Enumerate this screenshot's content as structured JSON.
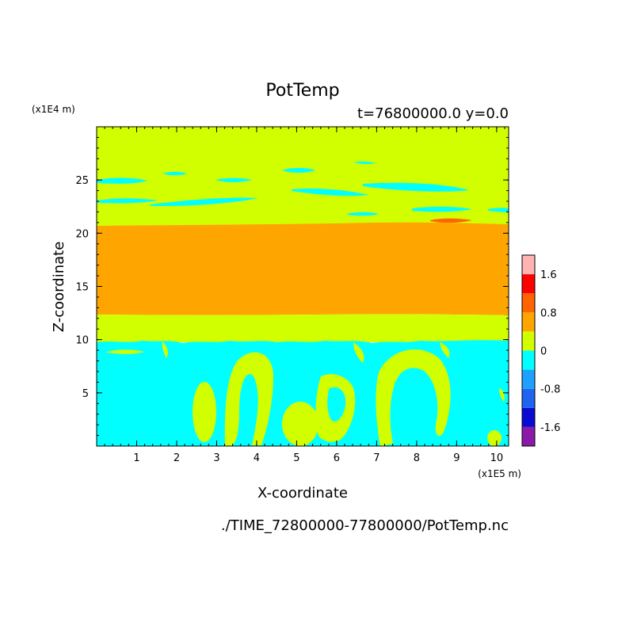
{
  "chart_data": {
    "type": "heatmap",
    "title": "PotTemp",
    "subtitle": "t=76800000.0 y=0.0",
    "xlabel": "X-coordinate",
    "ylabel": "Z-coordinate",
    "x_unit": "(x1E5 m)",
    "y_unit": "(x1E4 m)",
    "footer": "./TIME_72800000-77800000/PotTemp.nc",
    "xlim": [
      0,
      10.3
    ],
    "ylim": [
      0,
      30
    ],
    "x_ticks": [
      "1",
      "2",
      "3",
      "4",
      "5",
      "6",
      "7",
      "8",
      "9",
      "10"
    ],
    "y_ticks": [
      "5",
      "10",
      "15",
      "20",
      "25"
    ],
    "x_tick_values": [
      1,
      2,
      3,
      4,
      5,
      6,
      7,
      8,
      9,
      10
    ],
    "y_tick_values": [
      5,
      10,
      15,
      20,
      25
    ],
    "colorbar": {
      "levels": [
        -2.0,
        -1.6,
        -1.2,
        -0.8,
        -0.4,
        0,
        0.4,
        0.8,
        1.2,
        1.6,
        2.0
      ],
      "colors": [
        "#8c1aa8",
        "#0a0ad2",
        "#1e64f0",
        "#1ea0ff",
        "#00ffff",
        "#d2ff00",
        "#ffa500",
        "#ff6400",
        "#ff0000",
        "#ffb4b4"
      ],
      "labels": [
        "1.6",
        "0.8",
        "0",
        "-0.8",
        "-1.6"
      ],
      "label_values": [
        1.6,
        0.8,
        0,
        -0.8,
        -1.6
      ]
    },
    "bands": [
      {
        "z_min": 0,
        "z_max": 9.8,
        "value": -0.2
      },
      {
        "z_min": 9.8,
        "z_max": 12.3,
        "value": 0.2
      },
      {
        "z_min": 12.3,
        "z_max": 20.7,
        "value": 0.6
      },
      {
        "z_min": 20.7,
        "z_max": 30,
        "value": 0.2
      }
    ],
    "colors": {
      "cyan": "#00ffff",
      "yellow_green": "#d2ff00",
      "orange": "#ffa500",
      "red_orange": "#ff6400"
    }
  }
}
